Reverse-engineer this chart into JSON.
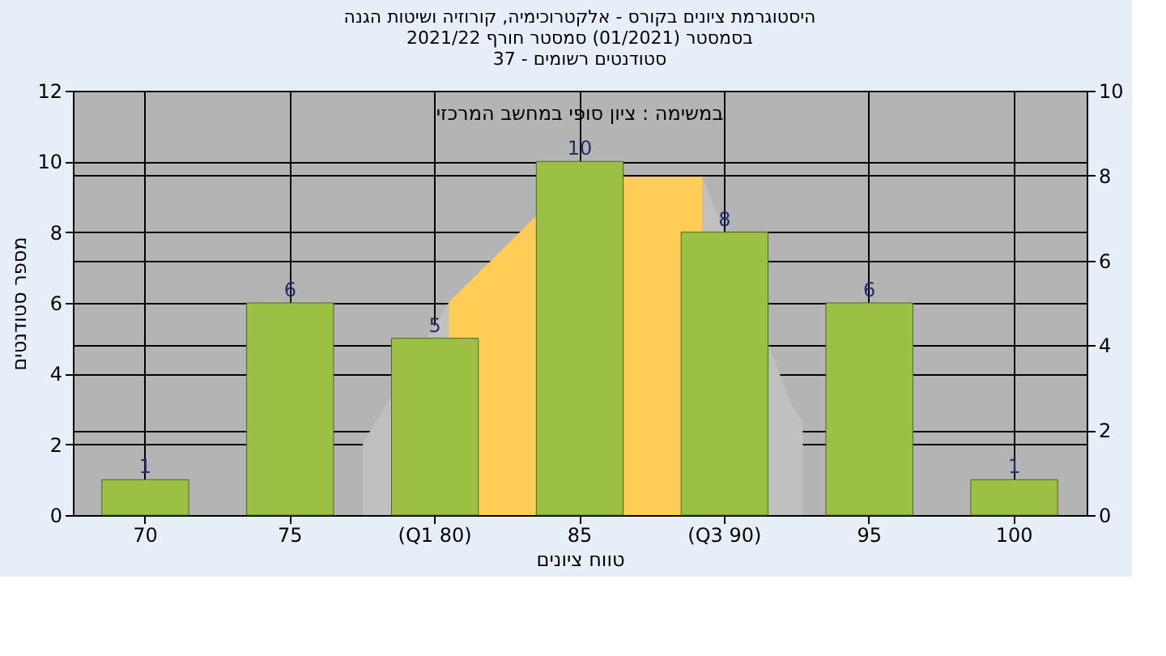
{
  "chart_data": {
    "type": "bar",
    "title": [
      "היסטוגרמת ציונים בקורס - אלקטרוכימיה, קורוזיה ושיטות הגנה",
      "בסמסטר  (01/2021)  סמסטר חורף  2021/22",
      "סטודנטים רשומים - 37"
    ],
    "xlabel": "טווח ציונים",
    "ylabel": "מספר סטודנטים",
    "annotations": [
      "במשימה : ציון סופי במחשב המרכזי"
    ],
    "categories": [
      "70",
      "75",
      "(Q1 80)",
      "85",
      "(Q3 90)",
      "95",
      "100"
    ],
    "series": [
      {
        "color": "#9bc044",
        "values": [
          1,
          6,
          5,
          10,
          8,
          6,
          1
        ],
        "value_labels": [
          "1",
          "6",
          "5",
          "10",
          "8",
          "6",
          "1"
        ]
      }
    ],
    "ylim": [
      0,
      12
    ],
    "yticks": [
      0,
      2,
      4,
      6,
      8,
      10,
      12
    ],
    "y2lim": [
      0,
      10
    ],
    "y2ticks": [
      0,
      2,
      4,
      6,
      8,
      10
    ],
    "grid": true
  }
}
